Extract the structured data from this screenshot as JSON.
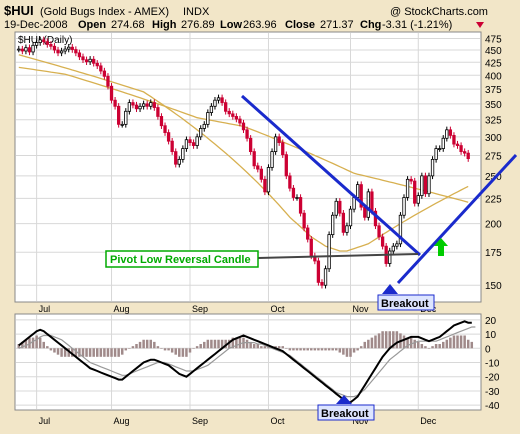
{
  "header": {
    "symbol": "$HUI",
    "name": "(Gold Bugs Index - AMEX)",
    "exchange": "INDX",
    "watermark": "@ StockCharts.com",
    "date": "19-Dec-2008",
    "open_label": "Open",
    "open": "274.68",
    "high_label": "High",
    "high": "276.89",
    "low_label": "Low",
    "low": "263.96",
    "close_label": "Close",
    "close": "271.37",
    "chg_label": "Chg",
    "chg": "-3.31 (-1.21%)",
    "legend": "$HUI (Daily)"
  },
  "annotations": {
    "pivot_label": "Pivot Low Reversal Candle",
    "breakout_price": "Breakout",
    "breakout_macd": "Breakout"
  },
  "colors": {
    "up": "#000000",
    "down": "#cc0033",
    "ma_long": "#d7b050",
    "ma_short": "#d7b050",
    "trendline": "#1a2acc",
    "support": "#444444",
    "pivot_box": "#00aa00",
    "green_arrow": "#00cc00",
    "hist": "#a08a8a",
    "macd": "#000000",
    "signal": "#999999"
  },
  "chart_data": [
    {
      "type": "candlestick",
      "title": "$HUI (Daily)",
      "y_scale": "log",
      "ylim": [
        140,
        485
      ],
      "y_ticks": [
        150,
        175,
        200,
        225,
        250,
        275,
        300,
        325,
        350,
        375,
        400,
        425,
        450,
        475
      ],
      "x_tick_labels": [
        "Jul",
        "Aug",
        "Sep",
        "Oct",
        "Nov",
        "Dec"
      ],
      "x_tick_index": [
        5,
        26,
        48,
        70,
        93,
        112
      ],
      "num_days": 127,
      "ohlc_note": "approximate daily closes read from chart",
      "closes": [
        452,
        448,
        455,
        446,
        460,
        466,
        472,
        468,
        462,
        458,
        450,
        444,
        448,
        452,
        456,
        451,
        444,
        436,
        430,
        426,
        431,
        423,
        418,
        408,
        398,
        380,
        356,
        346,
        318,
        318,
        338,
        352,
        348,
        342,
        346,
        350,
        346,
        352,
        344,
        330,
        316,
        306,
        294,
        280,
        264,
        270,
        284,
        296,
        292,
        288,
        300,
        312,
        318,
        336,
        346,
        356,
        360,
        352,
        338,
        334,
        330,
        326,
        320,
        310,
        298,
        280,
        262,
        258,
        246,
        232,
        260,
        280,
        300,
        292,
        276,
        250,
        236,
        226,
        226,
        210,
        196,
        186,
        172,
        168,
        152,
        150,
        162,
        190,
        208,
        222,
        210,
        192,
        198,
        214,
        226,
        240,
        216,
        206,
        232,
        212,
        198,
        188,
        180,
        166,
        176,
        180,
        182,
        208,
        226,
        246,
        244,
        220,
        228,
        250,
        230,
        250,
        270,
        284,
        284,
        298,
        310,
        302,
        290,
        288,
        280,
        278,
        271
      ],
      "ma_long": [
        415,
        414,
        413,
        412,
        411,
        410,
        409,
        408,
        407,
        406,
        405,
        404,
        403,
        402,
        400,
        398,
        396,
        394,
        392,
        390,
        388,
        386,
        384,
        382,
        380,
        378,
        376,
        374,
        372,
        370,
        368,
        366,
        364,
        362,
        360,
        358,
        356,
        354,
        352,
        350,
        348,
        346,
        344,
        342,
        340,
        338,
        336,
        334,
        332,
        330,
        328,
        327,
        326,
        325,
        324,
        323,
        322,
        321,
        320,
        319,
        318,
        317,
        316,
        315,
        313,
        311,
        309,
        307,
        305,
        303,
        301,
        299,
        297,
        295,
        293,
        291,
        289,
        287,
        285,
        283,
        281,
        279,
        277,
        275,
        273,
        271,
        269,
        267,
        265,
        263,
        261,
        259,
        257,
        255,
        253,
        252,
        251,
        250,
        249,
        248,
        247,
        246,
        245,
        244,
        243,
        242,
        241,
        240,
        239,
        238,
        237,
        236,
        235,
        234,
        233,
        232,
        231,
        230,
        229,
        228,
        227,
        226,
        225,
        224,
        223,
        222,
        221
      ],
      "ma_short": [
        440,
        438,
        436,
        434,
        432,
        430,
        428,
        426,
        424,
        422,
        420,
        418,
        416,
        414,
        412,
        410,
        408,
        406,
        404,
        402,
        400,
        398,
        396,
        394,
        392,
        390,
        388,
        386,
        384,
        382,
        380,
        378,
        376,
        374,
        372,
        370,
        366,
        362,
        358,
        354,
        350,
        346,
        342,
        338,
        334,
        330,
        326,
        322,
        318,
        314,
        310,
        306,
        302,
        298,
        294,
        290,
        286,
        282,
        278,
        274,
        270,
        266,
        262,
        258,
        254,
        250,
        246,
        242,
        238,
        234,
        230,
        226,
        222,
        218,
        214,
        210,
        206,
        203,
        200,
        197,
        194,
        191,
        188,
        186,
        184,
        182,
        180,
        179,
        178,
        177,
        176,
        176,
        176,
        177,
        178,
        179,
        180,
        181,
        182,
        184,
        186,
        188,
        190,
        192,
        194,
        196,
        198,
        200,
        202,
        204,
        206,
        208,
        210,
        212,
        214,
        216,
        218,
        220,
        222,
        224,
        226,
        228,
        230,
        232,
        234,
        236,
        238
      ]
    },
    {
      "type": "macd",
      "ylim": [
        -42,
        22
      ],
      "y_ticks": [
        20,
        10,
        0,
        -10,
        -20,
        -30,
        -40
      ],
      "x_tick_labels": [
        "Jul",
        "Aug",
        "Sep",
        "Oct",
        "Nov",
        "Dec"
      ],
      "macd": [
        2,
        4,
        6,
        8,
        10,
        12,
        13,
        12,
        10,
        8,
        6,
        4,
        2,
        0,
        -2,
        -4,
        -6,
        -8,
        -10,
        -12,
        -14,
        -15,
        -16,
        -17,
        -18,
        -19,
        -20,
        -21,
        -22,
        -22,
        -20,
        -18,
        -16,
        -14,
        -12,
        -10,
        -9,
        -8,
        -8,
        -9,
        -10,
        -11,
        -12,
        -14,
        -16,
        -18,
        -19,
        -20,
        -18,
        -16,
        -14,
        -12,
        -10,
        -8,
        -6,
        -4,
        -2,
        0,
        2,
        4,
        6,
        7,
        8,
        9,
        8,
        7,
        6,
        5,
        4,
        3,
        2,
        1,
        0,
        -1,
        -2,
        -4,
        -6,
        -8,
        -10,
        -12,
        -14,
        -16,
        -18,
        -20,
        -22,
        -24,
        -26,
        -28,
        -30,
        -32,
        -34,
        -36,
        -38,
        -38,
        -36,
        -34,
        -30,
        -26,
        -22,
        -18,
        -14,
        -10,
        -6,
        -3,
        0,
        2,
        4,
        5,
        6,
        7,
        8,
        8,
        8,
        7,
        6,
        5,
        6,
        7,
        8,
        10,
        12,
        14,
        16,
        17,
        18,
        19,
        18,
        18
      ],
      "signal": [
        0,
        1,
        2,
        3,
        5,
        6,
        8,
        9,
        9,
        9,
        8,
        7,
        6,
        4,
        2,
        0,
        -2,
        -4,
        -6,
        -8,
        -10,
        -11,
        -12,
        -13,
        -14,
        -15,
        -16,
        -17,
        -18,
        -19,
        -19,
        -18,
        -17,
        -16,
        -15,
        -14,
        -13,
        -12,
        -11,
        -10,
        -10,
        -10,
        -11,
        -12,
        -13,
        -14,
        -15,
        -16,
        -16,
        -16,
        -15,
        -14,
        -13,
        -12,
        -10,
        -8,
        -6,
        -4,
        -2,
        0,
        1,
        2,
        3,
        4,
        4,
        4,
        4,
        3,
        3,
        2,
        1,
        0,
        -1,
        -2,
        -3,
        -4,
        -5,
        -7,
        -9,
        -11,
        -13,
        -15,
        -17,
        -19,
        -21,
        -23,
        -25,
        -27,
        -29,
        -31,
        -32,
        -33,
        -34,
        -34,
        -34,
        -33,
        -31,
        -29,
        -26,
        -23,
        -20,
        -17,
        -14,
        -11,
        -8,
        -6,
        -4,
        -2,
        0,
        2,
        3,
        4,
        5,
        5,
        5,
        5,
        5,
        5,
        6,
        7,
        8,
        9,
        10,
        11,
        12,
        13,
        14,
        15,
        15
      ],
      "histogram_note": "difference of macd and signal, drawn as bars"
    }
  ]
}
